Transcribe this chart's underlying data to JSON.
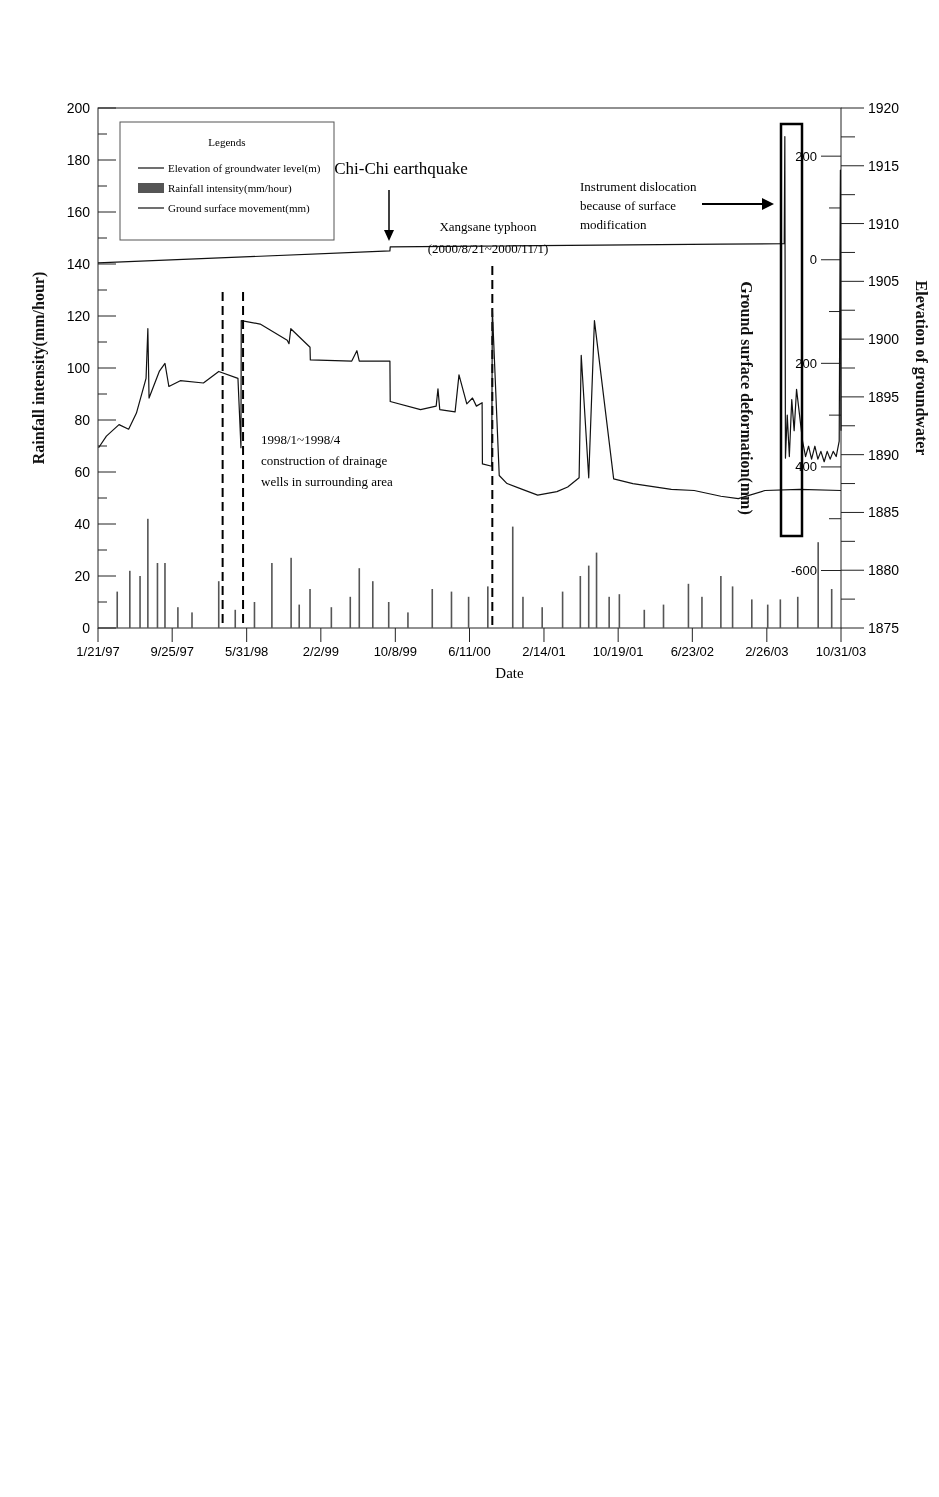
{
  "chart_data": {
    "type": "line",
    "xlabel": "Date",
    "ylabel": "Rainfall intensity(mm/hour)",
    "y2label": "Elevation of groundwater",
    "y3label": "Ground surface deformation(mm)",
    "legend": "top left",
    "legend_title": "Legends",
    "xlim": [
      "1997-01-21",
      "2003-10-31"
    ],
    "xticks": [
      {
        "value": "1997-01-21",
        "label": "1/21/97"
      },
      {
        "value": "1997-09-25",
        "label": "9/25/97"
      },
      {
        "value": "1998-05-31",
        "label": "5/31/98"
      },
      {
        "value": "1999-02-02",
        "label": "2/2/99"
      },
      {
        "value": "1999-10-08",
        "label": "10/8/99"
      },
      {
        "value": "2000-06-11",
        "label": "6/11/00"
      },
      {
        "value": "2001-02-14",
        "label": "2/14/01"
      },
      {
        "value": "2001-10-19",
        "label": "10/19/01"
      },
      {
        "value": "2002-06-23",
        "label": "6/23/02"
      },
      {
        "value": "2003-02-26",
        "label": "2/26/03"
      },
      {
        "value": "2003-10-31",
        "label": "10/31/03"
      }
    ],
    "ylim": [
      0,
      200
    ],
    "yticks": [
      0,
      {
        "value": 10,
        "label": null
      },
      20,
      {
        "value": 30,
        "label": null
      },
      40,
      {
        "value": 50,
        "label": null
      },
      60,
      {
        "value": 70,
        "label": null
      },
      80,
      {
        "value": 90,
        "label": null
      },
      100,
      {
        "value": 110,
        "label": null
      },
      120,
      {
        "value": 130,
        "label": null
      },
      140,
      {
        "value": 150,
        "label": null
      },
      160,
      {
        "value": 170,
        "label": null
      },
      180,
      {
        "value": 190,
        "label": null
      },
      200
    ],
    "y2lim": [
      1875,
      1920
    ],
    "y2ticks": [
      1875,
      {
        "value": 1877.5,
        "label": null
      },
      1880,
      {
        "value": 1882.5,
        "label": null
      },
      1885,
      {
        "value": 1887.5,
        "label": null
      },
      1890,
      {
        "value": 1892.5,
        "label": null
      },
      1895,
      {
        "value": 1897.5,
        "label": null
      },
      1900,
      {
        "value": 1902.5,
        "label": null
      },
      1905,
      {
        "value": 1907.5,
        "label": null
      },
      1910,
      {
        "value": 1912.5,
        "label": null
      },
      1915,
      {
        "value": 1917.5,
        "label": null
      },
      1920
    ],
    "y3lim": [
      -711,
      293
    ],
    "y3ticks": [
      -600,
      {
        "value": -500,
        "label": null
      },
      {
        "value": -400,
        "label": "400"
      },
      {
        "value": -300,
        "label": null
      },
      {
        "value": -200,
        "label": "200"
      },
      {
        "value": -100,
        "label": null
      },
      0,
      {
        "value": 100,
        "label": null
      },
      200
    ],
    "series": [
      {
        "name": "Elevation of groundwater level(m)",
        "axis": "y2",
        "color": "#111111",
        "x": [
          "1997-01-23",
          "1997-02-18",
          "1997-04-01",
          "1997-05-03",
          "1997-05-29",
          "1997-06-30",
          "1997-07-06",
          "1997-07-10",
          "1997-08-13",
          "1997-09-01",
          "1997-09-14",
          "1997-10-22",
          "1998-01-07",
          "1998-02-27",
          "1998-05-02",
          "1998-05-12",
          "1998-05-13",
          "1998-07-15",
          "1998-10-13",
          "1998-10-19",
          "1998-10-25",
          "1998-12-28",
          "1998-12-29",
          "1999-05-16",
          "1999-06-02",
          "1999-06-10",
          "1999-09-20",
          "1999-09-21",
          "1999-12-31",
          "2000-02-21",
          "2000-02-27",
          "2000-03-04",
          "2000-04-24",
          "2000-05-07",
          "2000-06-02",
          "2000-06-21",
          "2000-07-04",
          "2000-07-23",
          "2000-07-24",
          "2000-08-24",
          "2000-08-26",
          "2000-09-18",
          "2000-10-14",
          "2000-12-04",
          "2001-01-24",
          "2001-03-29",
          "2001-05-04",
          "2001-06-11",
          "2001-06-18",
          "2001-07-13",
          "2001-08-01",
          "2001-10-04",
          "2001-12-07",
          "2002-04-14",
          "2002-06-29",
          "2002-09-26",
          "2002-11-23",
          "2003-02-20",
          "2003-06-15",
          "2003-10-31"
        ],
        "values": [
          1890.6,
          1891.6,
          1892.6,
          1892.2,
          1893.6,
          1896.6,
          1900.9,
          1894.9,
          1897.2,
          1897.9,
          1895.9,
          1896.4,
          1896.2,
          1897.2,
          1896.6,
          1890.6,
          1901.6,
          1901.3,
          1899.9,
          1899.6,
          1900.9,
          1899.3,
          1898.2,
          1898.1,
          1899.0,
          1898.1,
          1898.1,
          1894.6,
          1893.9,
          1894.2,
          1895.7,
          1893.9,
          1893.7,
          1896.9,
          1894.4,
          1894.9,
          1894.2,
          1894.5,
          1889.2,
          1889.0,
          1902.6,
          1888.2,
          1887.5,
          1887.0,
          1886.5,
          1886.8,
          1887.2,
          1888.0,
          1898.6,
          1888.0,
          1901.6,
          1887.9,
          1887.5,
          1887.0,
          1886.9,
          1886.4,
          1886.2,
          1886.9,
          1887.0,
          1886.9
        ]
      },
      {
        "name": "Rainfall intensity(mm/hour)",
        "type": "bar",
        "color": "#555555",
        "x": [
          "1997-03-26",
          "1997-05-07",
          "1997-06-10",
          "1997-07-06",
          "1997-08-07",
          "1997-09-01",
          "1997-10-14",
          "1997-11-30",
          "1998-02-27",
          "1998-04-23",
          "1998-06-26",
          "1998-08-23",
          "1998-10-26",
          "1998-11-22",
          "1998-12-28",
          "1999-03-09",
          "1999-05-11",
          "1999-06-10",
          "1999-07-25",
          "1999-09-16",
          "1999-11-19",
          "2000-02-08",
          "2000-04-12",
          "2000-06-08",
          "2000-08-11",
          "2000-11-02",
          "2000-12-06",
          "2001-02-08",
          "2001-04-17",
          "2001-06-15",
          "2001-07-13",
          "2001-08-08",
          "2001-09-19",
          "2001-10-23",
          "2002-01-14",
          "2002-03-19",
          "2002-06-10",
          "2002-07-25",
          "2002-09-26",
          "2002-11-04",
          "2003-01-07",
          "2003-03-01",
          "2003-04-12",
          "2003-06-09",
          "2003-08-16",
          "2003-09-30"
        ],
        "values": [
          14,
          22,
          20,
          42,
          25,
          25,
          8,
          6,
          18,
          7,
          10,
          25,
          27,
          9,
          15,
          8,
          12,
          23,
          18,
          10,
          6,
          15,
          14,
          12,
          16,
          39,
          12,
          8,
          14,
          20,
          24,
          29,
          12,
          13,
          7,
          9,
          17,
          12,
          20,
          16,
          11,
          9,
          11,
          12,
          33,
          15
        ]
      },
      {
        "name": "Ground surface movement(mm)",
        "axis": "y3",
        "color": "#111111",
        "x": [
          "1997-01-21",
          "1999-09-20",
          "1999-09-21",
          "2002-09-26",
          "2003-04-25",
          "2003-04-27",
          "2003-04-29",
          "2003-05-05",
          "2003-05-12",
          "2003-05-20",
          "2003-05-28",
          "2003-06-05",
          "2003-06-15",
          "2003-06-25",
          "2003-07-05",
          "2003-07-15",
          "2003-07-25",
          "2003-08-05",
          "2003-08-15",
          "2003-08-25",
          "2003-09-05",
          "2003-09-15",
          "2003-09-25",
          "2003-10-05",
          "2003-10-15",
          "2003-10-25",
          "2003-10-29",
          "2003-10-31"
        ],
        "values": [
          -6,
          17,
          25,
          30,
          31,
          238,
          -383,
          -300,
          -380,
          -270,
          -330,
          -250,
          -300,
          -350,
          -380,
          -360,
          -385,
          -360,
          -385,
          -370,
          -390,
          -370,
          -385,
          -370,
          -380,
          -350,
          173,
          -330
        ]
      }
    ],
    "ref_lines": [
      {
        "axis": "x",
        "value": "1998-03-12",
        "color": "#000000",
        "line_style": "dashed"
      },
      {
        "axis": "x",
        "value": "1998-05-19",
        "color": "#000000",
        "line_style": "dashed"
      },
      {
        "axis": "x",
        "value": "2000-08-26",
        "color": "#000000",
        "line_style": "dashed"
      }
    ],
    "annotations": [
      "Chi-Chi earthquake",
      "Xangsane typhoon\n(2000/8/21~2000/11/1)",
      "1998/1~1998/4\nconstruction of drainage\nwells in surrounding area",
      "Instrument dislocation\nbecause of surface\nmodification"
    ]
  }
}
